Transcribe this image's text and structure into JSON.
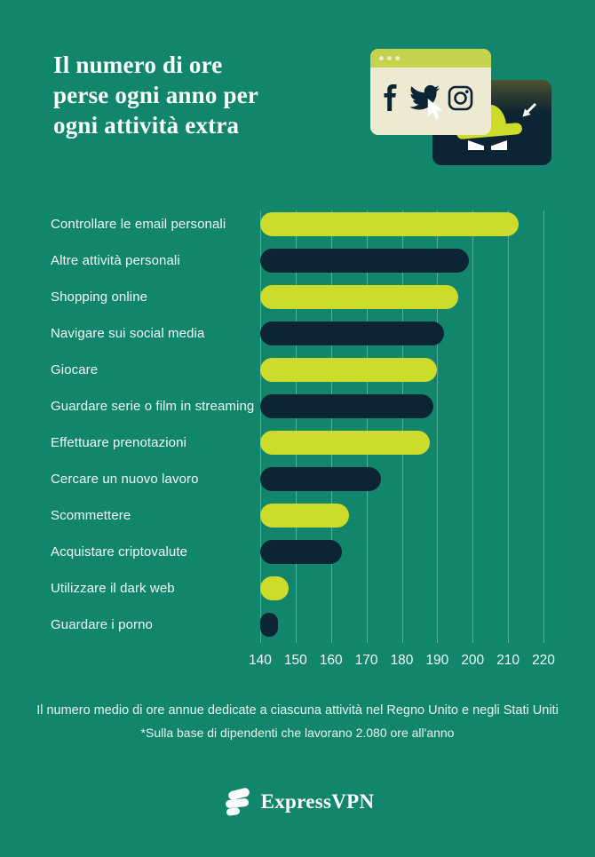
{
  "page": {
    "background_color": "#12866C",
    "text_color": "#FFFFFF"
  },
  "header": {
    "title": "Il numero di ore perse ogni anno per ogni attività extra",
    "title_lines": [
      "Il numero di ore",
      "perse ogni anno per",
      "ogni attività extra"
    ]
  },
  "chart_data": {
    "type": "bar",
    "orientation": "horizontal",
    "title": "Il numero di ore perse ogni anno per ogni attività extra",
    "categories": [
      "Controllare le email personali",
      "Altre attività personali",
      "Shopping online",
      "Navigare sui social media",
      "Giocare",
      "Guardare serie o film in streaming",
      "Effettuare prenotazioni",
      "Cercare un nuovo lavoro",
      "Scommettere",
      "Acquistare criptovalute",
      "Utilizzare il dark web",
      "Guardare i porno"
    ],
    "values": [
      213,
      199,
      196,
      192,
      190,
      189,
      188,
      174,
      165,
      163,
      148,
      145
    ],
    "xlabel": "",
    "ylabel": "",
    "xlim": [
      140,
      220
    ],
    "ticks": [
      140,
      150,
      160,
      170,
      180,
      190,
      200,
      210,
      220
    ],
    "grid": true,
    "legend": "none",
    "bar_colors": [
      "#CDDB2A",
      "#0C2433"
    ]
  },
  "footer": {
    "note_line1": "Il numero medio di ore annue dedicate a ciascuna attività nel Regno Unito e negli Stati Uniti",
    "note_line2": "*Sulla base di dipendenti che lavorano 2.080 ore all'anno",
    "brand": "ExpressVPN"
  },
  "colors": {
    "background": "#12866C",
    "bar_yellow": "#CDDB2A",
    "bar_navy": "#0C2433",
    "window_cream": "#EDE9D2",
    "window_titlebar": "#C5D24D",
    "gridline": "rgba(236,248,242,0.32)"
  }
}
